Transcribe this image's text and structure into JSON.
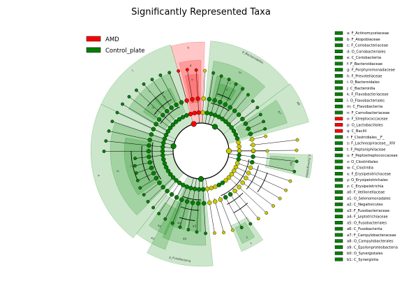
{
  "chart_data": {
    "type": "cladogram",
    "title": "Significantly Represented Taxa",
    "legend": [
      {
        "name": "AMD",
        "color": "#ff0000"
      },
      {
        "name": "Control_plate",
        "color": "#008000"
      }
    ],
    "key_entries": [
      {
        "label": "a: F_Actinomycetaceae",
        "group": "Control_plate"
      },
      {
        "label": "b: F_Atopobiaceae",
        "group": "Control_plate"
      },
      {
        "label": "c: F_Coriobacteriaceae",
        "group": "Control_plate"
      },
      {
        "label": "d: O_Coriobacteriales",
        "group": "Control_plate"
      },
      {
        "label": "e: C_Coriobacteriia",
        "group": "Control_plate"
      },
      {
        "label": "f: F_Bacteroidaceae",
        "group": "Control_plate"
      },
      {
        "label": "g: F_Porphyromonadaceae",
        "group": "Control_plate"
      },
      {
        "label": "h: F_Prevotellaceae",
        "group": "Control_plate"
      },
      {
        "label": "i: O_Bacteroidales",
        "group": "Control_plate"
      },
      {
        "label": "j: C_Bacteroidia",
        "group": "Control_plate"
      },
      {
        "label": "k: F_Flavobacteriaceae",
        "group": "Control_plate"
      },
      {
        "label": "l: O_Flavobacteriales",
        "group": "Control_plate"
      },
      {
        "label": "m: C_Flavobacteriia",
        "group": "Control_plate"
      },
      {
        "label": "n: F_Carnobacteriaceae",
        "group": "Control_plate"
      },
      {
        "label": "o: F_Streptococcaceae",
        "group": "AMD"
      },
      {
        "label": "p: O_Lactobacillales",
        "group": "AMD"
      },
      {
        "label": "q: C_Bacilli",
        "group": "AMD"
      },
      {
        "label": "r: F_Clostridiales__F_",
        "group": "Control_plate"
      },
      {
        "label": "s: F_Lachnospiraceae__XIV",
        "group": "Control_plate"
      },
      {
        "label": "t: F_Peptoniphilaceae",
        "group": "Control_plate"
      },
      {
        "label": "u: F_Peptostreptococcaceae",
        "group": "Control_plate"
      },
      {
        "label": "v: O_Clostridiales",
        "group": "Control_plate"
      },
      {
        "label": "w: C_Clostridia",
        "group": "Control_plate"
      },
      {
        "label": "x: F_Erysipelotrichaceae",
        "group": "Control_plate"
      },
      {
        "label": "y: O_Erysipelotrichales",
        "group": "Control_plate"
      },
      {
        "label": "z: C_Erysipelotrichia",
        "group": "Control_plate"
      },
      {
        "label": "a0: F_Veillonellaceae",
        "group": "Control_plate"
      },
      {
        "label": "a1: O_Selenomonadales",
        "group": "Control_plate"
      },
      {
        "label": "a2: C_Negativicutes",
        "group": "Control_plate"
      },
      {
        "label": "a3: F_Fusobacteriaceae",
        "group": "Control_plate"
      },
      {
        "label": "a4: F_Leptotrichiaceae",
        "group": "Control_plate"
      },
      {
        "label": "a5: O_Fusobacteriales",
        "group": "Control_plate"
      },
      {
        "label": "a6: C_Fusobacteriia",
        "group": "Control_plate"
      },
      {
        "label": "a7: F_Campylobacteraceae",
        "group": "Control_plate"
      },
      {
        "label": "a8: O_Campylobacterales",
        "group": "Control_plate"
      },
      {
        "label": "a9: C_Epsilonproteobacteria",
        "group": "Control_plate"
      },
      {
        "label": "b0: O_Synergistales",
        "group": "Control_plate"
      },
      {
        "label": "b1: C_Synergistia",
        "group": "Control_plate"
      }
    ],
    "phylum_labels": [
      {
        "label": "p_Bacteroidetes",
        "group": "Control_plate"
      },
      {
        "label": "p_Synergistetes",
        "group": "Control_plate"
      },
      {
        "label": "p_Fusobacteria",
        "group": "Control_plate"
      }
    ],
    "colors": {
      "amd": "#ff0000",
      "control": "#008000",
      "neutral_node": "#c8c800",
      "branch": "#000000"
    }
  }
}
